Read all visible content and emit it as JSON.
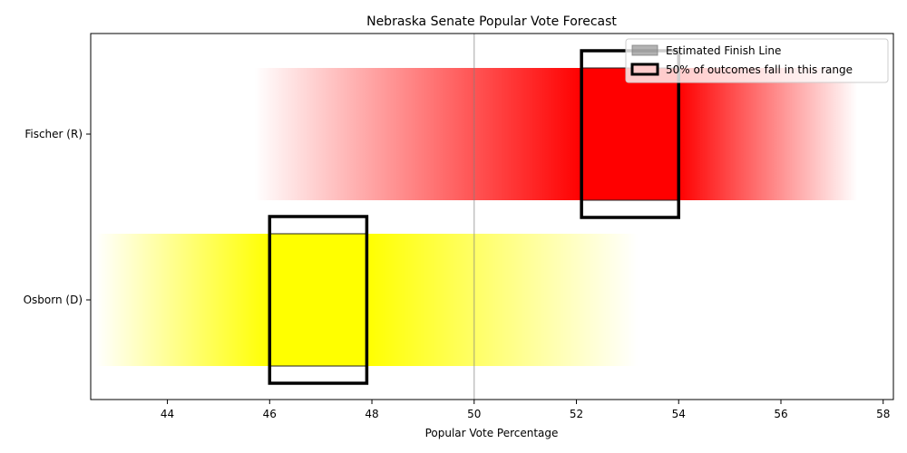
{
  "chart_data": {
    "type": "bar",
    "title": "Nebraska Senate Popular Vote Forecast",
    "xlabel": "Popular Vote Percentage",
    "ylabel": "",
    "xlim": [
      42.5,
      58.2
    ],
    "xticks": [
      44,
      46,
      48,
      50,
      52,
      54,
      56,
      58
    ],
    "finish_line": 50,
    "grid": false,
    "legend": {
      "placement": "top-right",
      "entries": [
        "Estimated Finish Line",
        "50% of outcomes fall in this range"
      ]
    },
    "series": [
      {
        "candidate": "Fischer (R)",
        "color": "#ff0000",
        "range_min": 45.7,
        "range_max": 57.5,
        "iqr_low": 52.1,
        "iqr_high": 54.0
      },
      {
        "candidate": "Osborn (D)",
        "color": "#ffff00",
        "range_min": 42.6,
        "range_max": 53.2,
        "iqr_low": 46.0,
        "iqr_high": 47.9
      }
    ]
  }
}
